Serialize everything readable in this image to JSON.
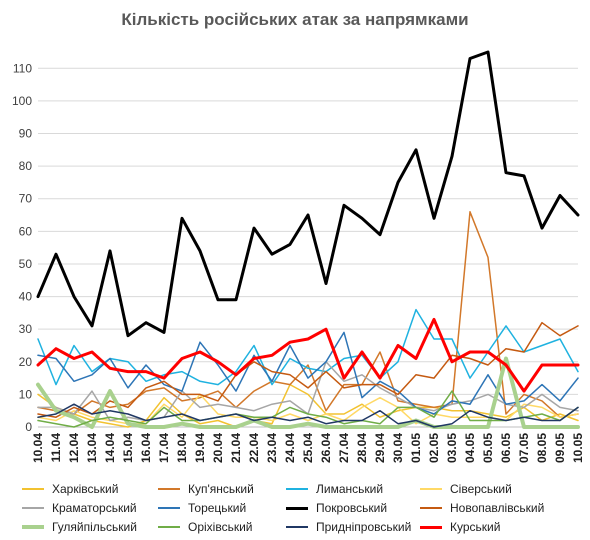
{
  "chart_data": {
    "type": "line",
    "title": "Кількість російських атак за напрямками",
    "ylim": [
      0,
      115
    ],
    "yticks": [
      0,
      10,
      20,
      30,
      40,
      50,
      60,
      70,
      80,
      90,
      100,
      110
    ],
    "grid": "horizontal",
    "legend": "bottom",
    "x": [
      "10.04",
      "11.04",
      "12.04",
      "13.04",
      "14.04",
      "15.04",
      "16.04",
      "17.04",
      "18.04",
      "19.04",
      "20.04",
      "21.04",
      "22.04",
      "23.04",
      "24.04",
      "25.04",
      "26.04",
      "27.04",
      "28.04",
      "29.04",
      "30.04",
      "01.05",
      "02.05",
      "03.05",
      "04.05",
      "05.05",
      "06.05",
      "07.05",
      "08.05",
      "09.05",
      "10.05"
    ],
    "xtick_labels": [
      "10.04",
      "11.04",
      "12.04",
      "13.04",
      "14.04",
      "15.04",
      "16.04",
      "17.04",
      "18.04",
      "19.04",
      "20.04",
      "21.04",
      "22.04",
      "23.04",
      "24.04",
      "25.04",
      "26.04",
      "27.04",
      "28.04",
      "29.04",
      "30.04",
      "01.05",
      "02.05",
      "03.05",
      "04.05",
      "05.05",
      "06.05",
      "07.05",
      "08.05",
      "09.05",
      "10.05"
    ],
    "series": [
      {
        "name": "Харківський",
        "color": "#f2c230",
        "width": 1.5,
        "values": [
          10,
          6,
          4,
          2,
          1,
          0,
          2,
          9,
          4,
          1,
          2,
          0,
          2,
          1,
          13,
          10,
          4,
          4,
          7,
          3,
          5,
          6,
          6,
          5,
          5,
          4,
          3,
          6,
          2,
          4,
          2
        ]
      },
      {
        "name": "Куп'янський",
        "color": "#d2782a",
        "width": 1.5,
        "values": [
          6,
          5,
          4,
          8,
          6,
          7,
          11,
          12,
          8,
          9,
          11,
          6,
          11,
          14,
          13,
          19,
          5,
          13,
          13,
          23,
          8,
          7,
          6,
          7,
          66,
          52,
          4,
          10,
          8,
          3,
          4
        ]
      },
      {
        "name": "Лиманський",
        "color": "#1fb2e0",
        "width": 1.5,
        "values": [
          27,
          13,
          25,
          17,
          21,
          20,
          14,
          16,
          17,
          14,
          13,
          17,
          25,
          13,
          21,
          18,
          17,
          21,
          22,
          15,
          20,
          36,
          27,
          27,
          15,
          23,
          31,
          23,
          25,
          27,
          17
        ]
      },
      {
        "name": "Сіверський",
        "color": "#ffd966",
        "width": 1.5,
        "values": [
          3,
          2,
          5,
          3,
          2,
          1,
          1,
          7,
          3,
          10,
          4,
          3,
          3,
          2,
          4,
          2,
          4,
          2,
          6,
          9,
          6,
          1,
          4,
          3,
          3,
          3,
          2,
          7,
          6,
          3,
          4
        ]
      },
      {
        "name": "Краматорський",
        "color": "#a6a6a6",
        "width": 1.5,
        "values": [
          6,
          6,
          4,
          11,
          2,
          3,
          2,
          3,
          11,
          6,
          7,
          6,
          5,
          7,
          8,
          4,
          20,
          14,
          16,
          12,
          9,
          6,
          5,
          7,
          8,
          10,
          7,
          6,
          10,
          6,
          5
        ]
      },
      {
        "name": "Торецький",
        "color": "#2e75b6",
        "width": 1.5,
        "values": [
          22,
          21,
          14,
          16,
          21,
          12,
          19,
          13,
          11,
          26,
          19,
          11,
          22,
          14,
          25,
          15,
          20,
          29,
          9,
          14,
          11,
          6,
          4,
          8,
          7,
          16,
          7,
          8,
          13,
          8,
          15
        ]
      },
      {
        "name": "Покровський",
        "color": "#000000",
        "width": 3,
        "values": [
          40,
          53,
          40,
          31,
          54,
          28,
          32,
          29,
          64,
          54,
          39,
          39,
          61,
          53,
          56,
          65,
          44,
          68,
          64,
          59,
          75,
          85,
          64,
          83,
          113,
          115,
          78,
          77,
          61,
          71,
          65
        ]
      },
      {
        "name": "Новопавлівський",
        "color": "#c55a11",
        "width": 1.5,
        "values": [
          4,
          3,
          6,
          4,
          8,
          6,
          12,
          14,
          10,
          10,
          8,
          16,
          20,
          17,
          16,
          12,
          17,
          12,
          13,
          13,
          10,
          16,
          15,
          22,
          21,
          19,
          24,
          23,
          32,
          28,
          31
        ]
      },
      {
        "name": "Гуляйпільський",
        "color": "#a9d18e",
        "width": 4,
        "values": [
          13,
          5,
          3,
          0,
          11,
          1,
          0,
          0,
          1,
          0,
          0,
          0,
          2,
          0,
          0,
          1,
          0,
          0,
          0,
          0,
          0,
          2,
          0,
          0,
          0,
          0,
          21,
          0,
          0,
          0,
          0
        ]
      },
      {
        "name": "Оріхівський",
        "color": "#70ad47",
        "width": 1.5,
        "values": [
          2,
          1,
          0,
          2,
          3,
          2,
          1,
          6,
          2,
          2,
          3,
          4,
          3,
          3,
          6,
          4,
          3,
          1,
          2,
          1,
          6,
          6,
          3,
          11,
          2,
          2,
          2,
          3,
          4,
          2,
          6
        ]
      },
      {
        "name": "Придніпровський",
        "color": "#203864",
        "width": 1.5,
        "values": [
          3,
          4,
          7,
          4,
          5,
          4,
          2,
          3,
          4,
          2,
          3,
          4,
          2,
          3,
          2,
          3,
          1,
          2,
          2,
          5,
          1,
          2,
          0,
          1,
          5,
          3,
          2,
          3,
          2,
          2,
          6
        ]
      },
      {
        "name": "Курський",
        "color": "#ff0000",
        "width": 3,
        "values": [
          19,
          24,
          21,
          23,
          18,
          17,
          17,
          15,
          21,
          23,
          20,
          16,
          21,
          22,
          26,
          27,
          30,
          15,
          23,
          15,
          25,
          21,
          33,
          20,
          23,
          23,
          19,
          11,
          19,
          19,
          19
        ]
      }
    ]
  }
}
